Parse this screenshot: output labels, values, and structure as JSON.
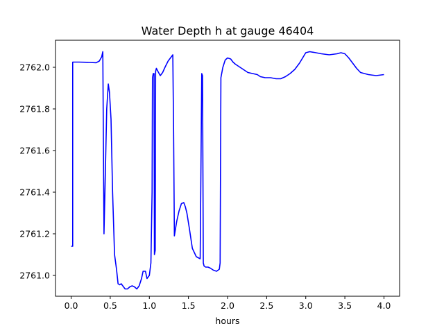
{
  "chart_data": {
    "type": "line",
    "title": "Water Depth h at gauge 46404",
    "xlabel": "hours",
    "ylabel": "",
    "xlim": [
      -0.2,
      4.2
    ],
    "ylim": [
      2760.9,
      2762.13
    ],
    "grid": false,
    "xticks": [
      0.0,
      0.5,
      1.0,
      1.5,
      2.0,
      2.5,
      3.0,
      3.5,
      4.0
    ],
    "xtick_labels": [
      "0.0",
      "0.5",
      "1.0",
      "1.5",
      "2.0",
      "2.5",
      "3.0",
      "3.5",
      "4.0"
    ],
    "yticks": [
      2761.0,
      2761.2,
      2761.4,
      2761.6,
      2761.8,
      2762.0
    ],
    "ytick_labels": [
      "2761.0",
      "2761.2",
      "2761.4",
      "2761.6",
      "2761.8",
      "2762.0"
    ],
    "series": [
      {
        "color": "#0000ff",
        "x": [
          0.0,
          0.02,
          0.02,
          0.1,
          0.2,
          0.32,
          0.36,
          0.39,
          0.405,
          0.42,
          0.435,
          0.455,
          0.475,
          0.49,
          0.51,
          0.53,
          0.555,
          0.58,
          0.6,
          0.62,
          0.64,
          0.66,
          0.69,
          0.72,
          0.75,
          0.78,
          0.81,
          0.84,
          0.87,
          0.9,
          0.92,
          0.95,
          0.97,
          1.0,
          1.02,
          1.035,
          1.04,
          1.05,
          1.06,
          1.065,
          1.075,
          1.08,
          1.09,
          1.11,
          1.14,
          1.17,
          1.2,
          1.24,
          1.27,
          1.3,
          1.31,
          1.32,
          1.35,
          1.38,
          1.41,
          1.44,
          1.46,
          1.48,
          1.51,
          1.55,
          1.6,
          1.65,
          1.67,
          1.675,
          1.68,
          1.69,
          1.7,
          1.72,
          1.75,
          1.78,
          1.82,
          1.86,
          1.895,
          1.905,
          1.915,
          1.94,
          1.97,
          2.0,
          2.04,
          2.07,
          2.1,
          2.14,
          2.2,
          2.26,
          2.32,
          2.38,
          2.42,
          2.48,
          2.55,
          2.62,
          2.68,
          2.74,
          2.8,
          2.86,
          2.92,
          2.96,
          3.0,
          3.05,
          3.1,
          3.2,
          3.3,
          3.4,
          3.45,
          3.5,
          3.55,
          3.6,
          3.65,
          3.7,
          3.8,
          3.9,
          4.0
        ],
        "y": [
          2761.14,
          2761.14,
          2762.025,
          2762.025,
          2762.024,
          2762.022,
          2762.03,
          2762.05,
          2762.075,
          2761.2,
          2761.45,
          2761.8,
          2761.92,
          2761.88,
          2761.75,
          2761.4,
          2761.1,
          2761.03,
          2760.96,
          2760.955,
          2760.96,
          2760.95,
          2760.935,
          2760.935,
          2760.945,
          2760.95,
          2760.945,
          2760.935,
          2760.95,
          2760.985,
          2761.02,
          2761.02,
          2760.985,
          2761.0,
          2761.06,
          2761.4,
          2761.95,
          2761.97,
          2761.97,
          2761.1,
          2761.12,
          2761.98,
          2761.995,
          2761.98,
          2761.96,
          2761.975,
          2762.0,
          2762.03,
          2762.045,
          2762.06,
          2761.7,
          2761.19,
          2761.26,
          2761.31,
          2761.345,
          2761.35,
          2761.33,
          2761.3,
          2761.23,
          2761.13,
          2761.09,
          2761.08,
          2761.97,
          2761.965,
          2761.96,
          2761.06,
          2761.045,
          2761.04,
          2761.04,
          2761.035,
          2761.025,
          2761.02,
          2761.03,
          2761.06,
          2761.95,
          2762.0,
          2762.035,
          2762.045,
          2762.04,
          2762.025,
          2762.015,
          2762.005,
          2761.99,
          2761.975,
          2761.97,
          2761.965,
          2761.955,
          2761.95,
          2761.95,
          2761.945,
          2761.945,
          2761.955,
          2761.97,
          2761.99,
          2762.02,
          2762.045,
          2762.07,
          2762.075,
          2762.072,
          2762.065,
          2762.06,
          2762.065,
          2762.07,
          2762.065,
          2762.045,
          2762.02,
          2761.995,
          2761.975,
          2761.965,
          2761.96,
          2761.965
        ]
      }
    ]
  }
}
